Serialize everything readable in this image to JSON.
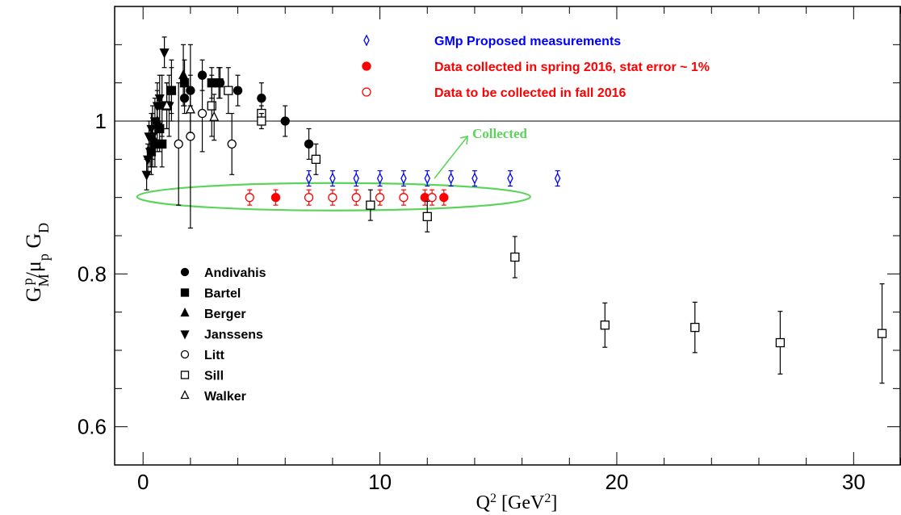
{
  "chart_data": {
    "type": "scatter",
    "xlabel": "Q²  [GeV²]",
    "ylabel": "GMp/μpGD",
    "xlim": [
      -1.2,
      32
    ],
    "ylim": [
      0.55,
      1.15
    ],
    "x_ticks": [
      0,
      10,
      20,
      30
    ],
    "y_ticks": [
      0.6,
      0.8,
      1
    ],
    "y_tick_labels": [
      "0.6",
      "0.8",
      "1"
    ],
    "reference_line": 1.0,
    "grid": false,
    "top_legend": [
      {
        "label": "GMp Proposed measurements",
        "color": "#0000ff",
        "marker": "open-diamond"
      },
      {
        "label": "Data collected in spring 2016, stat error ~ 1%",
        "color": "#ff0000",
        "marker": "filled-circle"
      },
      {
        "label": "Data to be collected in fall 2016",
        "color": "#ff0000",
        "marker": "open-circle"
      }
    ],
    "annotation": {
      "text": "Collected",
      "color": "#5cd45c"
    },
    "series": [
      {
        "name": "GMp Proposed measurements",
        "marker": "open-diamond",
        "color": "#0000ff",
        "points": [
          [
            7.0,
            0.925,
            0.01
          ],
          [
            8.0,
            0.925,
            0.01
          ],
          [
            9.0,
            0.925,
            0.01
          ],
          [
            10.0,
            0.925,
            0.01
          ],
          [
            11.0,
            0.925,
            0.01
          ],
          [
            12.0,
            0.925,
            0.01
          ],
          [
            13.0,
            0.925,
            0.01
          ],
          [
            14.0,
            0.925,
            0.01
          ],
          [
            15.5,
            0.925,
            0.01
          ],
          [
            17.5,
            0.925,
            0.01
          ]
        ]
      },
      {
        "name": "Data collected in spring 2016, stat error ~ 1%",
        "marker": "filled-circle",
        "color": "#ff0000",
        "points": [
          [
            5.6,
            0.9,
            0.01
          ],
          [
            11.9,
            0.9,
            0.01
          ],
          [
            12.7,
            0.9,
            0.01
          ]
        ]
      },
      {
        "name": "Data to be collected in fall 2016",
        "marker": "open-circle",
        "color": "#ff0000",
        "points": [
          [
            4.5,
            0.9,
            0.01
          ],
          [
            7.0,
            0.9,
            0.01
          ],
          [
            8.0,
            0.9,
            0.01
          ],
          [
            9.0,
            0.9,
            0.01
          ],
          [
            10.0,
            0.9,
            0.01
          ],
          [
            11.0,
            0.9,
            0.01
          ],
          [
            12.2,
            0.9,
            0.01
          ]
        ]
      },
      {
        "name": "Andivahis",
        "marker": "filled-circle",
        "color": "#000000",
        "points": [
          [
            1.75,
            1.03,
            0.02
          ],
          [
            2.5,
            1.06,
            0.02
          ],
          [
            3.25,
            1.05,
            0.02
          ],
          [
            4.0,
            1.04,
            0.02
          ],
          [
            5.0,
            1.03,
            0.02
          ],
          [
            6.0,
            1.0,
            0.02
          ],
          [
            7.0,
            0.97,
            0.02
          ],
          [
            2.0,
            1.04,
            0.02
          ]
        ]
      },
      {
        "name": "Bartel",
        "marker": "filled-square",
        "color": "#000000",
        "points": [
          [
            0.5,
            0.97,
            0.03
          ],
          [
            0.7,
            0.99,
            0.03
          ],
          [
            1.0,
            1.02,
            0.03
          ],
          [
            1.2,
            1.04,
            0.03
          ],
          [
            1.75,
            1.05,
            0.03
          ],
          [
            2.9,
            1.05,
            0.02
          ],
          [
            3.2,
            1.05,
            0.02
          ],
          [
            0.35,
            0.96,
            0.03
          ],
          [
            0.8,
            0.97,
            0.03
          ]
        ]
      },
      {
        "name": "Berger",
        "marker": "filled-triangle-up",
        "color": "#000000",
        "points": [
          [
            0.4,
            0.98,
            0.04
          ],
          [
            0.6,
            1.0,
            0.04
          ],
          [
            0.8,
            1.02,
            0.04
          ],
          [
            1.2,
            1.04,
            0.04
          ],
          [
            1.7,
            1.06,
            0.04
          ]
        ]
      },
      {
        "name": "Janssens",
        "marker": "filled-triangle-down",
        "color": "#000000",
        "points": [
          [
            0.15,
            0.93,
            0.02
          ],
          [
            0.2,
            0.95,
            0.02
          ],
          [
            0.25,
            0.98,
            0.02
          ],
          [
            0.3,
            0.96,
            0.02
          ],
          [
            0.4,
            0.98,
            0.03
          ],
          [
            0.5,
            1.0,
            0.03
          ],
          [
            0.6,
            1.02,
            0.03
          ],
          [
            0.7,
            1.03,
            0.03
          ],
          [
            0.9,
            1.09,
            0.02
          ],
          [
            1.1,
            1.02,
            0.04
          ],
          [
            0.35,
            0.99,
            0.02
          ]
        ]
      },
      {
        "name": "Litt",
        "marker": "open-circle",
        "color": "#000000",
        "points": [
          [
            1.5,
            0.97,
            0.08
          ],
          [
            2.0,
            0.98,
            0.12
          ],
          [
            2.5,
            1.01,
            0.05
          ],
          [
            3.75,
            0.97,
            0.04
          ]
        ]
      },
      {
        "name": "Sill",
        "marker": "open-square",
        "color": "#000000",
        "points": [
          [
            2.9,
            1.02,
            0.04
          ],
          [
            3.6,
            1.04,
            0.03
          ],
          [
            5.0,
            1.01,
            0.01
          ],
          [
            5.0,
            1.0,
            0.01
          ],
          [
            7.3,
            0.95,
            0.02
          ],
          [
            9.6,
            0.89,
            0.02
          ],
          [
            12.0,
            0.875,
            0.02
          ],
          [
            15.7,
            0.822,
            0.027
          ],
          [
            19.5,
            0.733,
            0.029
          ],
          [
            23.3,
            0.73,
            0.033
          ],
          [
            26.9,
            0.71,
            0.041
          ],
          [
            31.2,
            0.722,
            0.065
          ]
        ]
      },
      {
        "name": "Walker",
        "marker": "open-triangle-up",
        "color": "#000000",
        "points": [
          [
            2.0,
            1.015,
            0.03
          ],
          [
            3.0,
            1.005,
            0.03
          ],
          [
            1.0,
            1.02,
            0.03
          ]
        ]
      }
    ],
    "bottom_legend": [
      {
        "label": "Andivahis",
        "marker": "filled-circle"
      },
      {
        "label": "Bartel",
        "marker": "filled-square"
      },
      {
        "label": "Berger",
        "marker": "filled-triangle-up"
      },
      {
        "label": "Janssens",
        "marker": "filled-triangle-down"
      },
      {
        "label": "Litt",
        "marker": "open-circle"
      },
      {
        "label": "Sill",
        "marker": "open-square"
      },
      {
        "label": "Walker",
        "marker": "open-triangle-up"
      }
    ]
  }
}
